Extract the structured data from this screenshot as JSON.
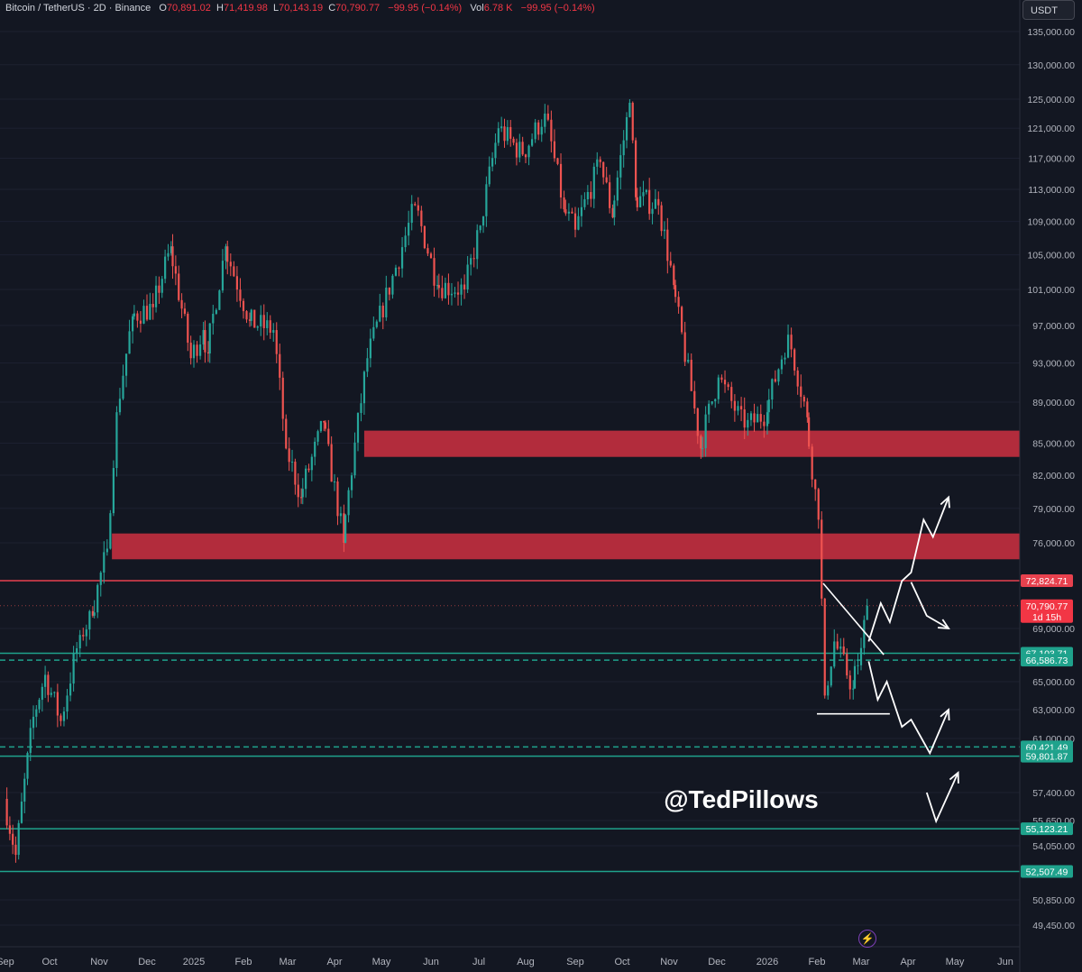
{
  "header": {
    "symbol": "Bitcoin / TetherUS · 2D · Binance",
    "o_label": "O",
    "o_value": "70,891.02",
    "h_label": "H",
    "h_value": "71,419.98",
    "l_label": "L",
    "l_value": "70,143.19",
    "c_label": "C",
    "c_value": "70,790.77",
    "change": "−99.95 (−0.14%)",
    "vol_label": "Vol",
    "vol_value": "6.78 K",
    "vol_change": "−99.95 (−0.14%)"
  },
  "currency_button": "USDT",
  "watermark": "@TedPillows",
  "icons": {
    "flash": "lightning-icon"
  },
  "colors": {
    "up": "#26a69a",
    "down": "#ef5350",
    "zone": "#b22c3c",
    "support": "#1fa28c",
    "resistance": "#e8414e",
    "bg": "#131722"
  },
  "chart_data": {
    "type": "candlestick",
    "title": "Bitcoin / TetherUS · 2D · Binance",
    "xlabel": "",
    "ylabel": "",
    "y_scale": "log",
    "ylim": [
      48000,
      137000
    ],
    "y_ticks": [
      {
        "value": 135000,
        "label": "135,000.00"
      },
      {
        "value": 130000,
        "label": "130,000.00"
      },
      {
        "value": 125000,
        "label": "125,000.00"
      },
      {
        "value": 121000,
        "label": "121,000.00"
      },
      {
        "value": 117000,
        "label": "117,000.00"
      },
      {
        "value": 113000,
        "label": "113,000.00"
      },
      {
        "value": 109000,
        "label": "109,000.00"
      },
      {
        "value": 105000,
        "label": "105,000.00"
      },
      {
        "value": 101000,
        "label": "101,000.00"
      },
      {
        "value": 97000,
        "label": "97,000.00"
      },
      {
        "value": 93000,
        "label": "93,000.00"
      },
      {
        "value": 89000,
        "label": "89,000.00"
      },
      {
        "value": 85000,
        "label": "85,000.00"
      },
      {
        "value": 82000,
        "label": "82,000.00"
      },
      {
        "value": 79000,
        "label": "79,000.00"
      },
      {
        "value": 76000,
        "label": "76,000.00"
      },
      {
        "value": 69000,
        "label": "69,000.00"
      },
      {
        "value": 65000,
        "label": "65,000.00"
      },
      {
        "value": 63000,
        "label": "63,000.00"
      },
      {
        "value": 61000,
        "label": "61,000.00"
      },
      {
        "value": 57400,
        "label": "57,400.00"
      },
      {
        "value": 55650,
        "label": "55,650.00"
      },
      {
        "value": 54050,
        "label": "54,050.00"
      },
      {
        "value": 50850,
        "label": "50,850.00"
      },
      {
        "value": 49450,
        "label": "49,450.00"
      }
    ],
    "x_ticks": [
      "Sep",
      "Oct",
      "Nov",
      "Dec",
      "2025",
      "Feb",
      "Mar",
      "Apr",
      "May",
      "Jun",
      "Jul",
      "Aug",
      "Sep",
      "Oct",
      "Nov",
      "Dec",
      "2026",
      "Feb",
      "Mar",
      "Apr",
      "May",
      "Jun"
    ],
    "price_levels": [
      {
        "label": "72,824.71",
        "value": 72824.71,
        "kind": "resistance",
        "style": "solid"
      },
      {
        "label": "67,103.71",
        "value": 67103.71,
        "kind": "support",
        "style": "solid"
      },
      {
        "label": "66,586.73",
        "value": 66586.73,
        "kind": "support",
        "style": "dashed"
      },
      {
        "label": "60,421.49",
        "value": 60421.49,
        "kind": "support",
        "style": "dashed"
      },
      {
        "label": "59,801.87",
        "value": 59801.87,
        "kind": "support",
        "style": "solid"
      },
      {
        "label": "55,123.21",
        "value": 55123.21,
        "kind": "support",
        "style": "solid"
      },
      {
        "label": "52,507.49",
        "value": 52507.49,
        "kind": "support",
        "style": "solid"
      }
    ],
    "current_price": {
      "label": "70,790.77",
      "countdown": "1d 15h",
      "value": 70790.77
    },
    "zones": [
      {
        "from_date": "2025-04-20",
        "low": 83700,
        "high": 86200
      },
      {
        "from_date": "2024-11-09",
        "low": 74600,
        "high": 76800
      }
    ],
    "anchors": [
      {
        "date": "2024-09-01",
        "close": 57000
      },
      {
        "date": "2024-09-08",
        "close": 53500
      },
      {
        "date": "2024-09-20",
        "close": 62500
      },
      {
        "date": "2024-09-28",
        "close": 65500
      },
      {
        "date": "2024-10-08",
        "close": 62200
      },
      {
        "date": "2024-10-20",
        "close": 68500
      },
      {
        "date": "2024-10-28",
        "close": 70000
      },
      {
        "date": "2024-11-06",
        "close": 75500
      },
      {
        "date": "2024-11-12",
        "close": 88000
      },
      {
        "date": "2024-11-22",
        "close": 98000
      },
      {
        "date": "2024-12-05",
        "close": 99000
      },
      {
        "date": "2024-12-17",
        "close": 106000
      },
      {
        "date": "2024-12-30",
        "close": 93500
      },
      {
        "date": "2025-01-07",
        "close": 96500
      },
      {
        "date": "2025-01-10",
        "close": 94000
      },
      {
        "date": "2025-01-21",
        "close": 106000
      },
      {
        "date": "2025-02-05",
        "close": 97500
      },
      {
        "date": "2025-02-20",
        "close": 96500
      },
      {
        "date": "2025-02-28",
        "close": 84500
      },
      {
        "date": "2025-03-10",
        "close": 80000
      },
      {
        "date": "2025-03-25",
        "close": 87000
      },
      {
        "date": "2025-04-07",
        "close": 76000
      },
      {
        "date": "2025-04-22",
        "close": 93500
      },
      {
        "date": "2025-05-10",
        "close": 103500
      },
      {
        "date": "2025-05-22",
        "close": 111000
      },
      {
        "date": "2025-06-05",
        "close": 101500
      },
      {
        "date": "2025-06-22",
        "close": 101000
      },
      {
        "date": "2025-07-02",
        "close": 108500
      },
      {
        "date": "2025-07-14",
        "close": 121000
      },
      {
        "date": "2025-07-30",
        "close": 117500
      },
      {
        "date": "2025-08-13",
        "close": 123000
      },
      {
        "date": "2025-08-25",
        "close": 110500
      },
      {
        "date": "2025-09-01",
        "close": 108000
      },
      {
        "date": "2025-09-17",
        "close": 116500
      },
      {
        "date": "2025-09-25",
        "close": 109500
      },
      {
        "date": "2025-10-06",
        "close": 124500
      },
      {
        "date": "2025-10-10",
        "close": 112000
      },
      {
        "date": "2025-10-25",
        "close": 111000
      },
      {
        "date": "2025-11-04",
        "close": 101500
      },
      {
        "date": "2025-11-21",
        "close": 84500
      },
      {
        "date": "2025-12-02",
        "close": 91500
      },
      {
        "date": "2025-12-18",
        "close": 86500
      },
      {
        "date": "2026-01-01",
        "close": 88000
      },
      {
        "date": "2026-01-14",
        "close": 96000
      },
      {
        "date": "2026-01-26",
        "close": 87500
      },
      {
        "date": "2026-02-02",
        "close": 78000
      },
      {
        "date": "2026-02-06",
        "close": 64000
      },
      {
        "date": "2026-02-12",
        "close": 68000
      },
      {
        "date": "2026-02-24",
        "close": 64500
      },
      {
        "date": "2026-03-01",
        "close": 67500
      },
      {
        "date": "2026-03-05",
        "close": 70790.77
      }
    ],
    "projections": [
      {
        "direction": "up",
        "points": [
          [
            "2026-03-06",
            68000
          ],
          [
            "2026-03-14",
            71000
          ],
          [
            "2026-03-20",
            69500
          ],
          [
            "2026-03-28",
            72800
          ],
          [
            "2026-04-03",
            73500
          ],
          [
            "2026-04-11",
            78000
          ],
          [
            "2026-04-17",
            76500
          ],
          [
            "2026-04-27",
            80000
          ]
        ]
      },
      {
        "direction": "down-then-up",
        "points": [
          [
            "2026-03-06",
            66500
          ],
          [
            "2026-03-12",
            63700
          ],
          [
            "2026-03-18",
            65000
          ],
          [
            "2026-03-28",
            61800
          ],
          [
            "2026-04-03",
            62300
          ],
          [
            "2026-04-15",
            60000
          ],
          [
            "2026-04-27",
            63000
          ]
        ]
      },
      {
        "direction": "rejection",
        "points": [
          [
            "2026-04-03",
            72700
          ],
          [
            "2026-04-13",
            70000
          ],
          [
            "2026-04-27",
            69000
          ]
        ]
      },
      {
        "direction": "deep-bounce",
        "points": [
          [
            "2026-04-13",
            57400
          ],
          [
            "2026-04-19",
            55600
          ],
          [
            "2026-05-03",
            58700
          ]
        ]
      }
    ],
    "trendlines": [
      {
        "kind": "descending",
        "points": [
          [
            "2026-02-05",
            72600
          ],
          [
            "2026-03-16",
            67000
          ]
        ]
      },
      {
        "kind": "range-low",
        "points": [
          [
            "2026-02-01",
            62700
          ],
          [
            "2026-03-20",
            62700
          ]
        ]
      }
    ]
  }
}
